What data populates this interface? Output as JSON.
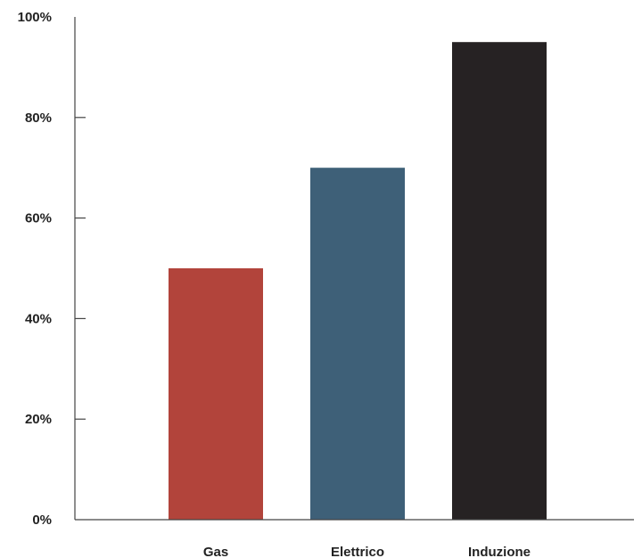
{
  "chart_data": {
    "type": "bar",
    "categories": [
      "Gas",
      "Elettrico",
      "Induzione"
    ],
    "values": [
      50,
      70,
      95
    ],
    "colors": [
      "#b2443b",
      "#3e6078",
      "#262223"
    ],
    "yticks": [
      "0%",
      "20%",
      "40%",
      "60%",
      "80%",
      "100%"
    ],
    "ylim": [
      0,
      100
    ],
    "title": "",
    "xlabel": "",
    "ylabel": "",
    "grid": false,
    "legend": "none"
  }
}
